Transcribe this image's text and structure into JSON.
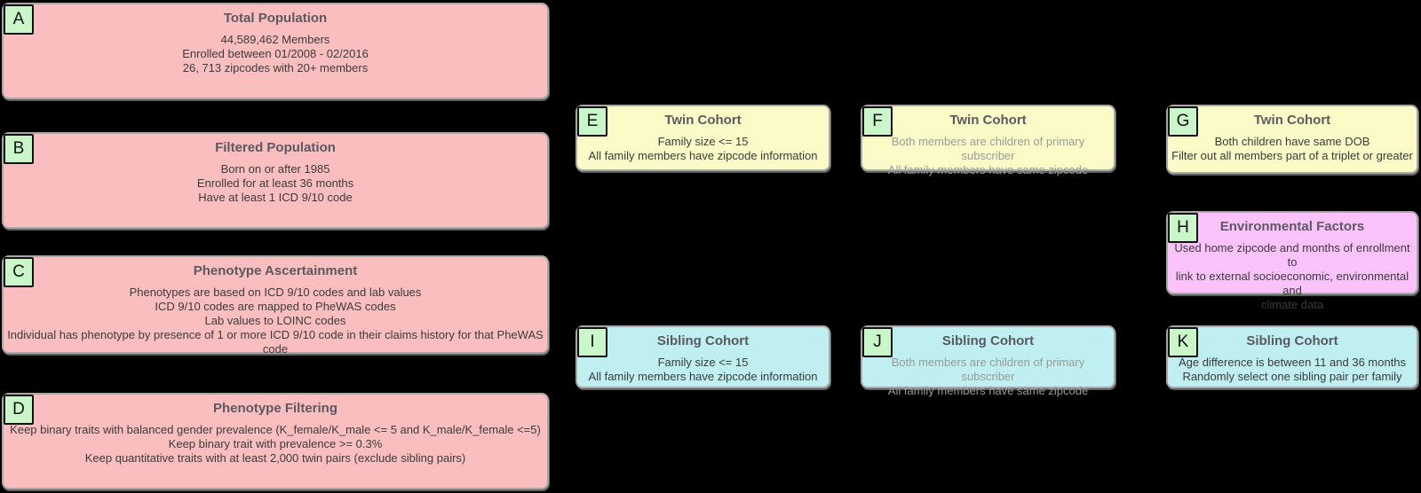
{
  "colors": {
    "background": "#000000",
    "pink": "#fbbebe",
    "yellow": "#fbfbc8",
    "cyan": "#bfeff0",
    "magenta": "#fbc2fb",
    "badge_bg": "#c9f7c9",
    "badge_border": "#111111",
    "node_border": "#a8a8a8",
    "node_shadow": "#5f5f5f",
    "title_text": "#5a5a60",
    "body_text_dark": "#3b3b3b",
    "body_text_gray": "#9a9a9a"
  },
  "nodes": [
    {
      "id": "A",
      "title": "Total Population",
      "color": "pink",
      "body_style": "dark",
      "lines": [
        "44,589,462 Members",
        "Enrolled between 01/2008 - 02/2016",
        "26, 713 zipcodes with 20+ members"
      ]
    },
    {
      "id": "B",
      "title": "Filtered Population",
      "color": "pink",
      "body_style": "dark",
      "lines": [
        "Born on or after 1985",
        "Enrolled for at least 36 months",
        "Have at least 1 ICD 9/10 code"
      ]
    },
    {
      "id": "C",
      "title": "Phenotype Ascertainment",
      "color": "pink",
      "body_style": "dark",
      "lines": [
        "Phenotypes are based on ICD 9/10 codes and lab values",
        "ICD 9/10 codes are mapped to PheWAS codes",
        "Lab values to LOINC codes",
        "Individual has phenotype by presence of 1 or more ICD 9/10 code in their claims history for that PheWAS code"
      ]
    },
    {
      "id": "D",
      "title": "Phenotype Filtering",
      "color": "pink",
      "body_style": "dark",
      "lines": [
        "Keep binary traits with balanced gender prevalence (K_female/K_male <= 5 and K_male/K_female <=5)",
        "Keep binary trait with prevalence >= 0.3%",
        "Keep quantitative traits with at least 2,000 twin pairs (exclude sibling pairs)"
      ]
    },
    {
      "id": "E",
      "title": "Twin Cohort",
      "color": "yellow",
      "body_style": "dark",
      "lines": [
        "Family size <= 15",
        "All family members have zipcode information"
      ]
    },
    {
      "id": "F",
      "title": "Twin Cohort",
      "color": "yellow",
      "body_style": "gray",
      "lines": [
        "Both members are children of primary subscriber",
        "All family members have same zipcode"
      ]
    },
    {
      "id": "G",
      "title": "Twin Cohort",
      "color": "yellow",
      "body_style": "dark",
      "lines": [
        "Both children have same DOB",
        "Filter out all members part of a triplet or greater"
      ]
    },
    {
      "id": "H",
      "title": "Environmental Factors",
      "color": "magenta",
      "body_style": "dark",
      "lines": [
        "Used home zipcode and months of enrollment to",
        "link to external socioeconomic, environmental and",
        "climate data"
      ]
    },
    {
      "id": "I",
      "title": "Sibling Cohort",
      "color": "cyan",
      "body_style": "dark",
      "lines": [
        "Family size <= 15",
        "All family members have zipcode information"
      ]
    },
    {
      "id": "J",
      "title": "Sibling Cohort",
      "color": "cyan",
      "body_style": "gray",
      "lines": [
        "Both members are children of primary subscriber",
        "All family members have same zipcode"
      ]
    },
    {
      "id": "K",
      "title": "Sibling Cohort",
      "color": "cyan",
      "body_style": "dark",
      "lines": [
        "Age difference is between 11 and 36 months",
        "Randomly select one sibling pair per family"
      ]
    }
  ]
}
